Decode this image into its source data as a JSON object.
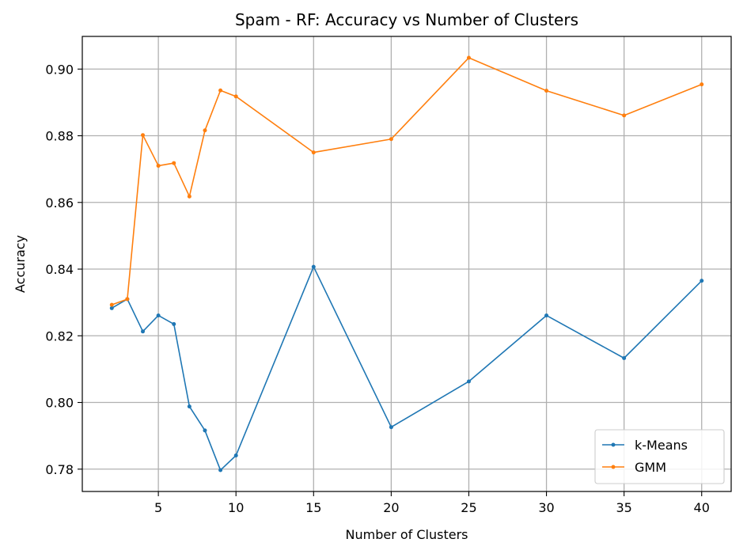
{
  "chart_data": {
    "type": "line",
    "title": "Spam - RF: Accuracy vs Number of Clusters",
    "xlabel": "Number of Clusters",
    "ylabel": "Accuracy",
    "x": [
      2,
      3,
      4,
      5,
      6,
      7,
      8,
      9,
      10,
      15,
      20,
      25,
      30,
      35,
      40
    ],
    "xticks": [
      5,
      10,
      15,
      20,
      25,
      30,
      35,
      40
    ],
    "xtick_labels": [
      "5",
      "10",
      "15",
      "20",
      "25",
      "30",
      "35",
      "40"
    ],
    "yticks": [
      0.78,
      0.8,
      0.82,
      0.84,
      0.86,
      0.88,
      0.9
    ],
    "ytick_labels": [
      "0.78",
      "0.80",
      "0.82",
      "0.84",
      "0.86",
      "0.88",
      "0.90"
    ],
    "xlim": [
      0.1,
      41.9
    ],
    "ylim": [
      0.7733,
      0.9098
    ],
    "grid": true,
    "legend_position": "lower-right",
    "series": [
      {
        "name": "k-Means",
        "color": "#1f77b4",
        "values": [
          0.8283,
          0.831,
          0.8213,
          0.8261,
          0.8235,
          0.7988,
          0.7916,
          0.7797,
          0.7841,
          0.8407,
          0.7926,
          0.8063,
          0.8261,
          0.8133,
          0.8365
        ]
      },
      {
        "name": "GMM",
        "color": "#ff7f0e",
        "values": [
          0.8293,
          0.831,
          0.8802,
          0.871,
          0.8718,
          0.8618,
          0.8816,
          0.8936,
          0.8918,
          0.875,
          0.879,
          0.9034,
          0.8935,
          0.8861,
          0.8954
        ]
      }
    ]
  }
}
